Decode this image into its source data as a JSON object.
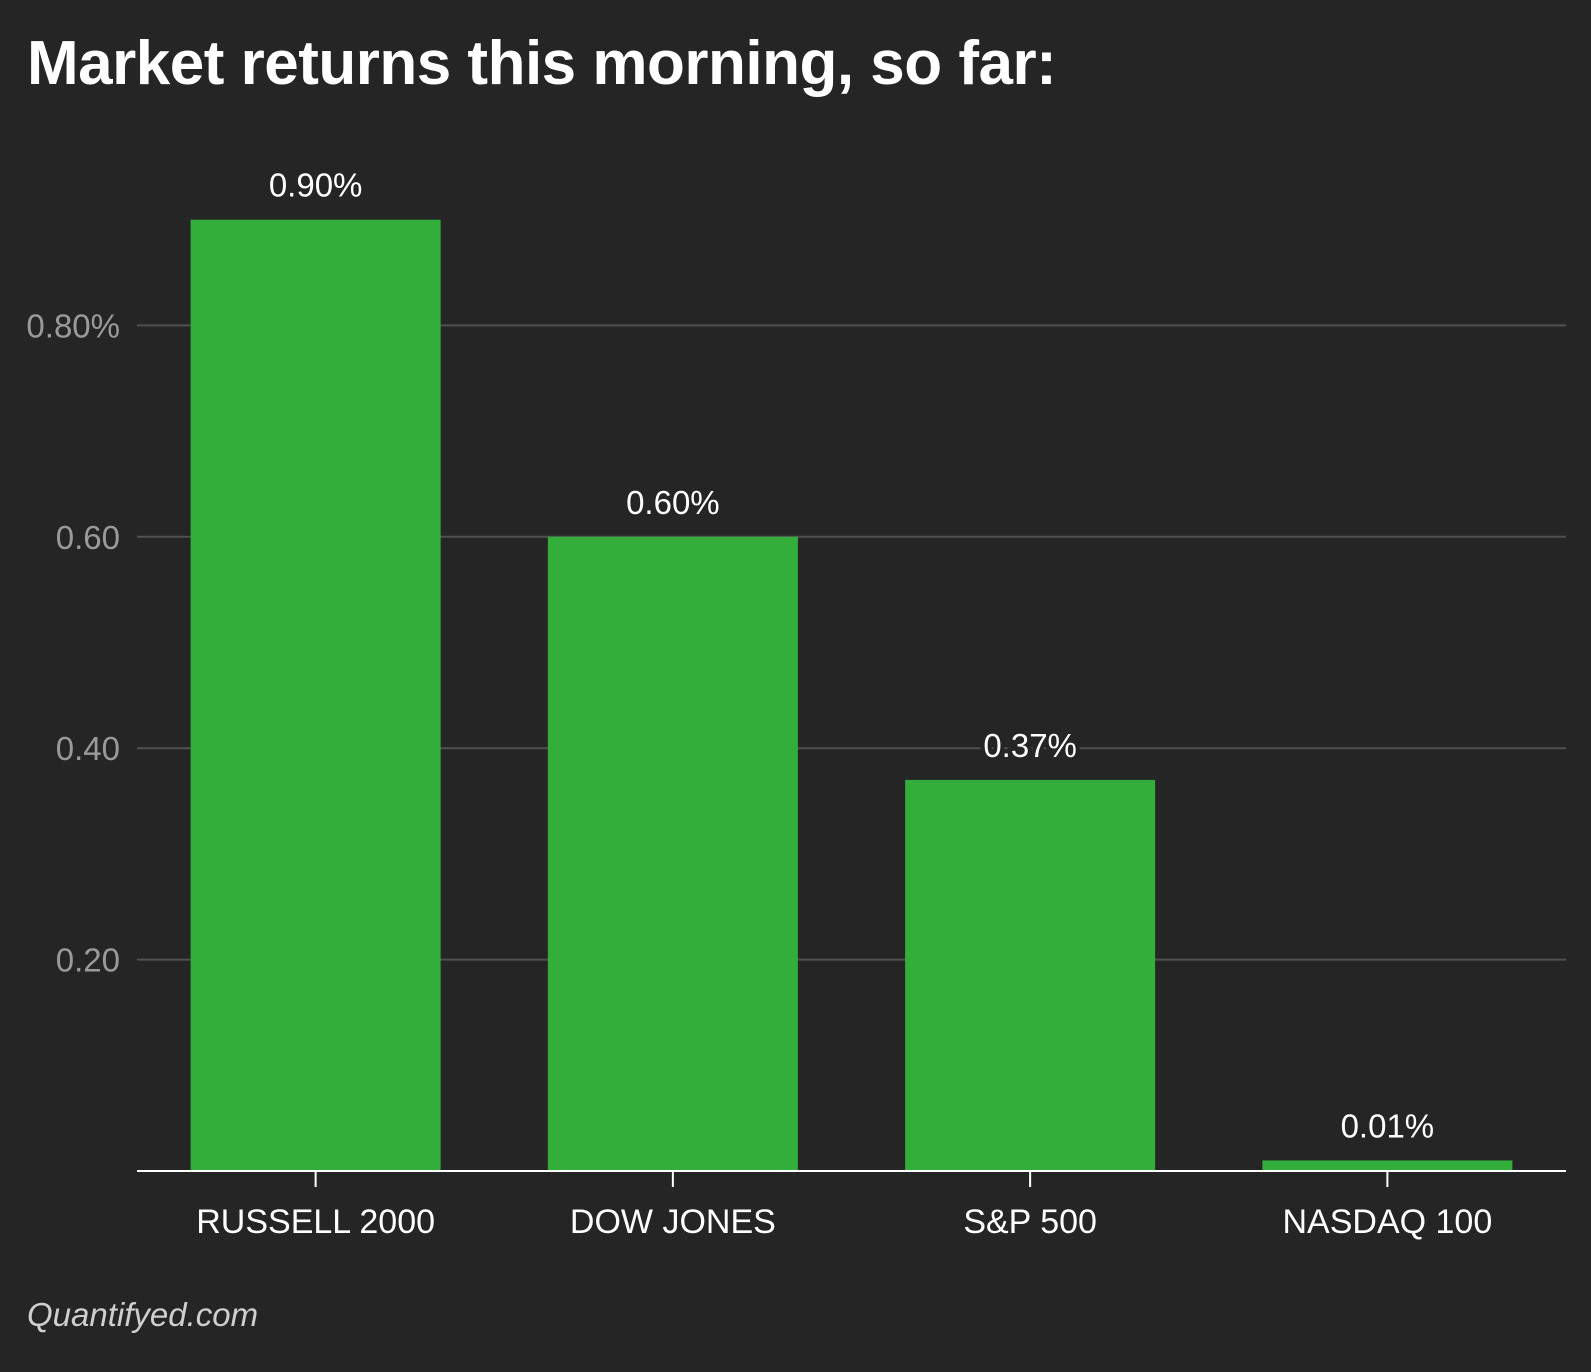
{
  "title": "Market returns this morning, so far:",
  "footer": {
    "source": "Quantifyed.com"
  },
  "colors": {
    "background": "#252526",
    "bar": "#34ae3b",
    "grid": "#505050",
    "axis": "#ffffff",
    "tick_label": "#9a9a9a",
    "text": "#ffffff"
  },
  "chart_data": {
    "type": "bar",
    "categories": [
      "RUSSELL 2000",
      "DOW JONES",
      "S&P 500",
      "NASDAQ 100"
    ],
    "values": [
      0.9,
      0.6,
      0.37,
      0.01
    ],
    "data_labels": [
      "0.90%",
      "0.60%",
      "0.37%",
      "0.01%"
    ],
    "ylim": [
      0,
      1.0
    ],
    "yticks": [
      0.2,
      0.4,
      0.6,
      0.8
    ],
    "ytick_labels": [
      "0.20",
      "0.40",
      "0.60",
      "0.80%"
    ],
    "grid": true,
    "title": "Market returns this morning, so far:",
    "xlabel": "",
    "ylabel": ""
  }
}
